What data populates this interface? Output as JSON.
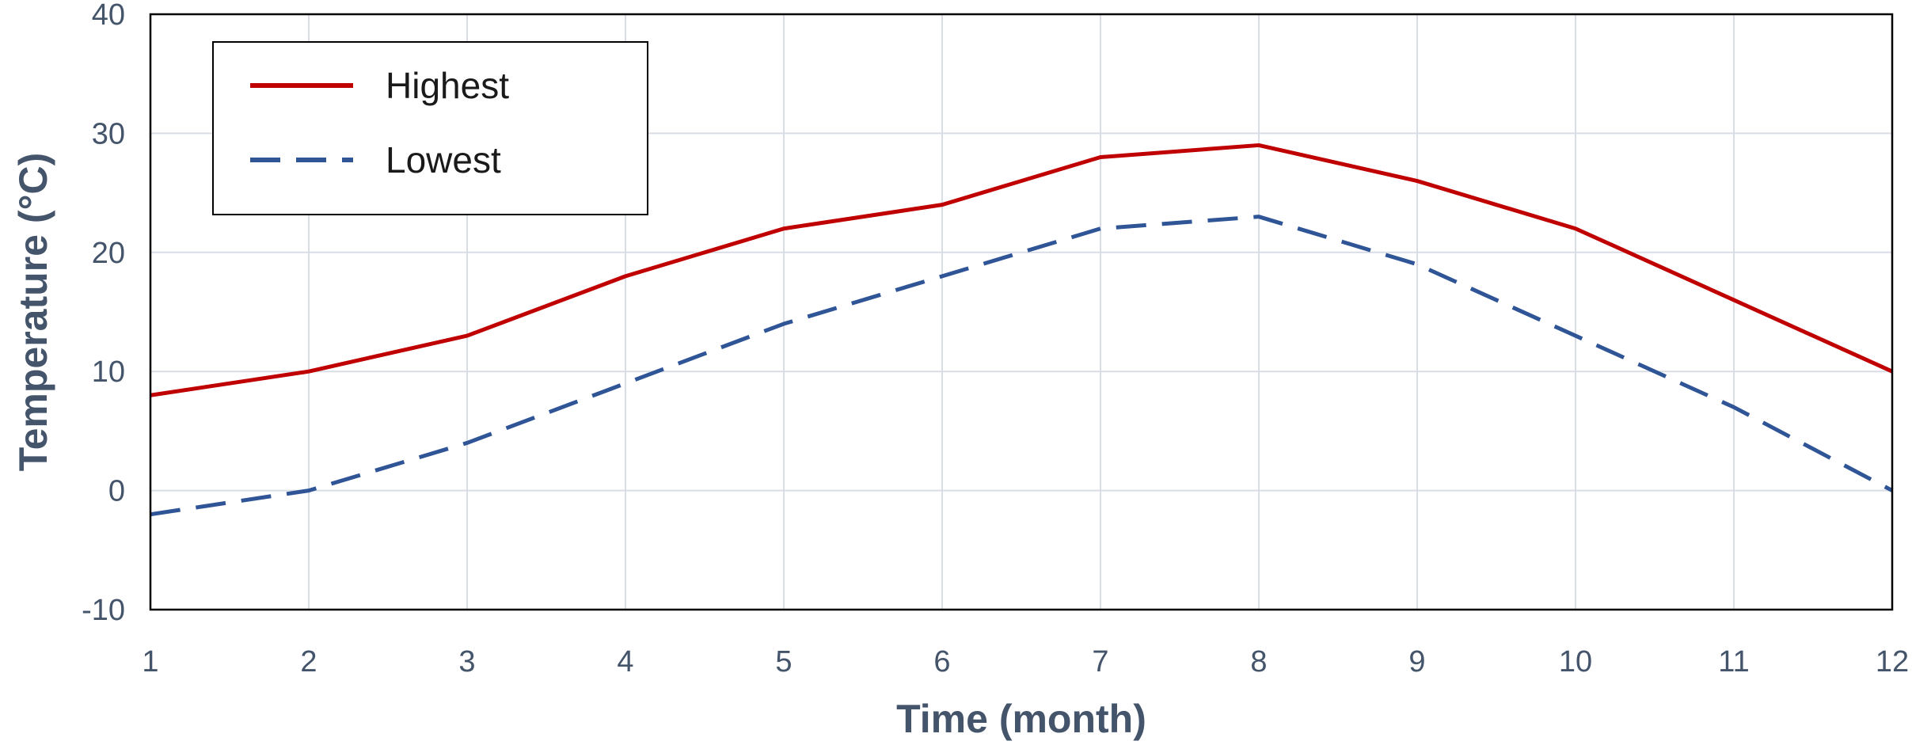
{
  "chart_data": {
    "type": "line",
    "title": "",
    "xlabel": "Time (month)",
    "ylabel": "Temperature (°C)",
    "x": [
      1,
      2,
      3,
      4,
      5,
      6,
      7,
      8,
      9,
      10,
      11,
      12
    ],
    "x_tick_labels": [
      "1",
      "2",
      "3",
      "4",
      "5",
      "6",
      "7",
      "8",
      "9",
      "10",
      "11",
      "12"
    ],
    "xlim": [
      1,
      12
    ],
    "ylim": [
      -10,
      40
    ],
    "y_ticks": [
      -10,
      0,
      10,
      20,
      30,
      40
    ],
    "y_tick_labels": [
      "-10",
      "0",
      "10",
      "20",
      "30",
      "40"
    ],
    "grid": true,
    "legend_position": "top-left",
    "series": [
      {
        "name": "Highest",
        "style": "solid",
        "color": "#c00000",
        "values": [
          8,
          10,
          13,
          18,
          22,
          24,
          28,
          29,
          26,
          22,
          16,
          10
        ]
      },
      {
        "name": "Lowest",
        "style": "dashed",
        "color": "#2f5597",
        "values": [
          -2,
          0,
          4,
          9,
          14,
          18,
          22,
          23,
          19,
          13,
          7,
          0
        ]
      }
    ]
  },
  "colors": {
    "grid": "#d9dde5",
    "axis_text": "#44546a",
    "frame": "#000000"
  }
}
